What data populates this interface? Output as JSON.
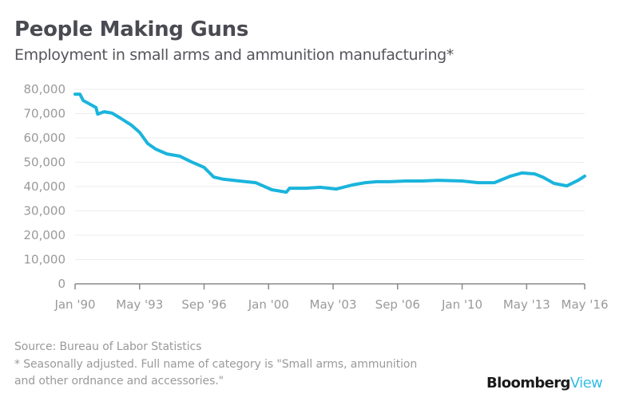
{
  "header": {
    "title": "People Making Guns",
    "subtitle": "Employment in small arms and ammunition manufacturing*"
  },
  "footer": {
    "source": "Source: Bureau of Labor Statistics",
    "note_line1": "* Seasonally adjusted. Full name of category is \"Small arms, ammunition",
    "note_line2": "and other ordnance and accessories.\"",
    "logo_part1": "Bloomberg",
    "logo_part2": "View"
  },
  "colors": {
    "line": "#1ab4dc",
    "grid": "#ececec",
    "axis": "#8a8a8a",
    "tick_text": "#9a9a9a",
    "brand_accent": "#33bde4"
  },
  "chart_data": {
    "type": "line",
    "title": "People Making Guns",
    "subtitle": "Employment in small arms and ammunition manufacturing*",
    "xlabel": "",
    "ylabel": "",
    "ylim": [
      0,
      80000
    ],
    "y_ticks": [
      0,
      10000,
      20000,
      30000,
      40000,
      50000,
      60000,
      70000,
      80000
    ],
    "y_tick_labels": [
      "0",
      "10,000",
      "20,000",
      "30,000",
      "40,000",
      "50,000",
      "60,000",
      "70,000",
      "80,000"
    ],
    "x_range_months": [
      0,
      316
    ],
    "x_ticks_months": [
      0,
      40,
      80,
      120,
      160,
      200,
      240,
      280,
      316
    ],
    "x_tick_labels": [
      "Jan '90",
      "May '93",
      "Sep '96",
      "Jan '00",
      "May '03",
      "Sep '06",
      "Jan '10",
      "May '13",
      "May '16"
    ],
    "x_unit": "months since Jan 1990",
    "grid": true,
    "legend": "none",
    "series": [
      {
        "name": "Employment",
        "x": [
          0,
          3,
          5,
          13,
          14,
          18,
          23,
          28,
          35,
          40,
          45,
          50,
          57,
          65,
          72,
          80,
          83,
          86,
          92,
          102,
          112,
          122,
          131,
          133,
          143,
          152,
          162,
          172,
          180,
          187,
          195,
          205,
          215,
          225,
          240,
          250,
          260,
          270,
          277,
          285,
          290,
          297,
          305,
          312,
          316
        ],
        "values": [
          78000,
          78000,
          75400,
          72500,
          69800,
          70800,
          70200,
          68200,
          65200,
          62300,
          57700,
          55400,
          53400,
          52500,
          50200,
          47900,
          45900,
          43900,
          43000,
          42300,
          41600,
          38700,
          37700,
          39300,
          39300,
          39700,
          39000,
          40700,
          41600,
          42000,
          42000,
          42300,
          42300,
          42600,
          42300,
          41600,
          41600,
          44300,
          45600,
          45200,
          43900,
          41300,
          40300,
          42600,
          44300
        ]
      }
    ]
  }
}
